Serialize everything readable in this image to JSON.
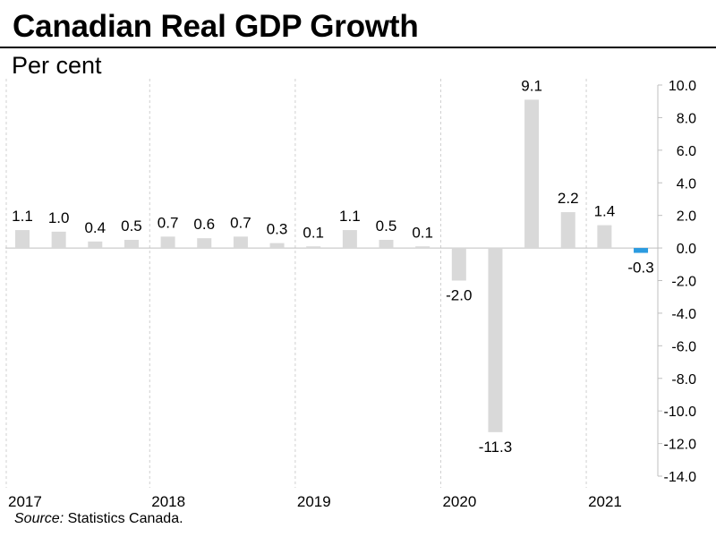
{
  "header": {
    "title": "Canadian Real GDP Growth",
    "subtitle": "Per cent"
  },
  "footer": {
    "source_label": "Source:",
    "source_text": " Statistics Canada."
  },
  "colors": {
    "bar_default": "#d9d9d9",
    "bar_highlight": "#2b9be0",
    "axis": "#bfbfbf",
    "gridline": "#d0d0d0",
    "text": "#000000"
  },
  "chart_data": {
    "type": "bar",
    "title": "Canadian Real GDP Growth",
    "ylabel": "Per cent",
    "xlabel": "",
    "ylim": [
      -14,
      10
    ],
    "yticks": [
      "10.0",
      "8.0",
      "6.0",
      "4.0",
      "2.0",
      "0.0",
      "-2.0",
      "-4.0",
      "-6.0",
      "-8.0",
      "-10.0",
      "-12.0",
      "-14.0"
    ],
    "ytick_values": [
      10,
      8,
      6,
      4,
      2,
      0,
      -2,
      -4,
      -6,
      -8,
      -10,
      -12,
      -14
    ],
    "years": [
      "2017",
      "2018",
      "2019",
      "2020",
      "2021"
    ],
    "categories": [
      "2017 Q1",
      "2017 Q2",
      "2017 Q3",
      "2017 Q4",
      "2018 Q1",
      "2018 Q2",
      "2018 Q3",
      "2018 Q4",
      "2019 Q1",
      "2019 Q2",
      "2019 Q3",
      "2019 Q4",
      "2020 Q1",
      "2020 Q2",
      "2020 Q3",
      "2020 Q4",
      "2021 Q1",
      "2021 Q2"
    ],
    "values": [
      1.1,
      1.0,
      0.4,
      0.5,
      0.7,
      0.6,
      0.7,
      0.3,
      0.1,
      1.1,
      0.5,
      0.1,
      -2.0,
      -11.3,
      9.1,
      2.2,
      1.4,
      -0.3
    ],
    "labels": [
      "1.1",
      "1.0",
      "0.4",
      "0.5",
      "0.7",
      "0.6",
      "0.7",
      "0.3",
      "0.1",
      "1.1",
      "0.5",
      "0.1",
      "-2.0",
      "-11.3",
      "9.1",
      "2.2",
      "1.4",
      "-0.3"
    ],
    "highlight_index": 17,
    "grid": "vertical dashed year separators",
    "yaxis_position": "right"
  }
}
